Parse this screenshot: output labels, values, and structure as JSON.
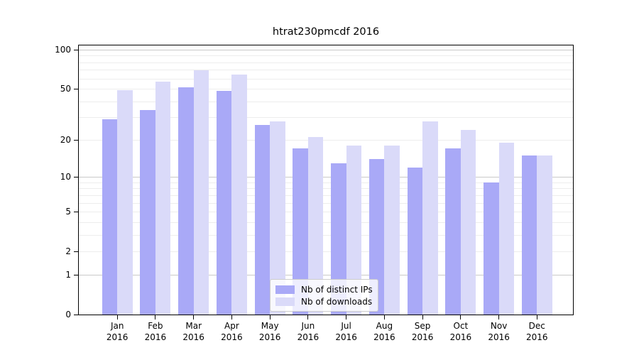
{
  "chart_data": {
    "type": "bar",
    "title": "htrat230pmcdf 2016",
    "categories": [
      "Jan",
      "Feb",
      "Mar",
      "Apr",
      "May",
      "Jun",
      "Jul",
      "Aug",
      "Sep",
      "Oct",
      "Nov",
      "Dec"
    ],
    "year_label": "2016",
    "series": [
      {
        "name": "Nb of distinct IPs",
        "color": "#a9a9f7",
        "values": [
          29,
          34,
          51,
          48,
          26,
          17,
          13,
          14,
          12,
          17,
          9,
          15
        ]
      },
      {
        "name": "Nb of downloads",
        "color": "#dadaf9",
        "values": [
          49,
          57,
          69,
          64,
          28,
          21,
          18,
          18,
          28,
          24,
          19,
          15
        ]
      }
    ],
    "xlabel": "",
    "ylabel": "",
    "y_scale": "log10(value+1)",
    "y_ticks": [
      0,
      1,
      2,
      5,
      10,
      20,
      50,
      100
    ],
    "y_minor_gridlines": [
      1,
      2,
      3,
      4,
      5,
      6,
      7,
      8,
      9,
      10,
      20,
      30,
      40,
      50,
      60,
      70,
      80,
      90,
      100
    ],
    "y_major_gridlines": [
      1,
      10,
      100
    ],
    "ylim": [
      0,
      110
    ],
    "grid": true,
    "legend_position": "lower center",
    "background": "#ffffff"
  }
}
